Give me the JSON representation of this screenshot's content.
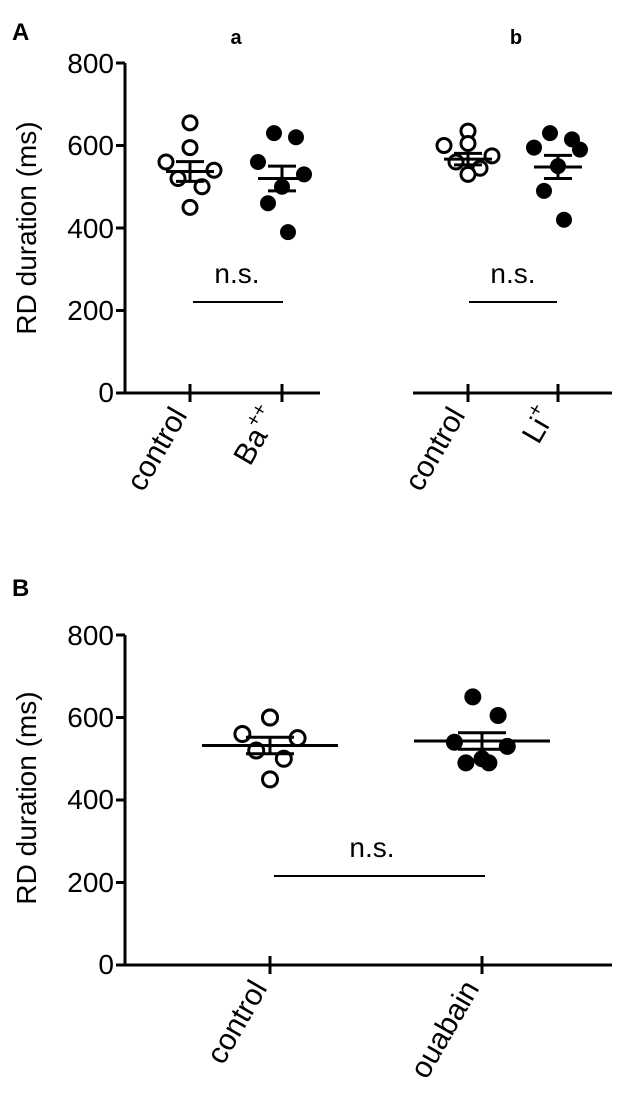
{
  "panels": [
    {
      "label": "A",
      "ylabel": "RD duration (ms)",
      "ylim": [
        0,
        800
      ],
      "yticks": [
        "0",
        "200",
        "400",
        "600",
        "800"
      ]
    },
    {
      "label": "B",
      "ylabel": "RD duration (ms)",
      "ylim": [
        0,
        800
      ],
      "yticks": [
        "0",
        "200",
        "400",
        "600",
        "800"
      ]
    }
  ],
  "chart_data": [
    {
      "type": "scatter",
      "panel": "A",
      "sublabel": "a",
      "categories": [
        "control",
        "Ba++"
      ],
      "category_display": [
        {
          "base": "control",
          "sup": ""
        },
        {
          "base": "Ba",
          "sup": "++"
        }
      ],
      "series": [
        {
          "category": "control",
          "marker": "open",
          "values": [
            655,
            595,
            560,
            540,
            520,
            500,
            450
          ],
          "mean": 537,
          "sem": 24
        },
        {
          "category": "Ba++",
          "marker": "filled",
          "values": [
            630,
            620,
            560,
            530,
            500,
            460,
            390
          ],
          "mean": 520,
          "sem": 30
        }
      ],
      "annotation": "n.s.",
      "ylim": [
        0,
        800
      ]
    },
    {
      "type": "scatter",
      "panel": "A",
      "sublabel": "b",
      "categories": [
        "control",
        "Li+"
      ],
      "category_display": [
        {
          "base": "control",
          "sup": ""
        },
        {
          "base": "Li",
          "sup": "+"
        }
      ],
      "series": [
        {
          "category": "control",
          "marker": "open",
          "values": [
            635,
            605,
            600,
            575,
            560,
            545,
            530
          ],
          "mean": 567,
          "sem": 14
        },
        {
          "category": "Li+",
          "marker": "filled",
          "values": [
            630,
            615,
            595,
            590,
            550,
            490,
            420
          ],
          "mean": 548,
          "sem": 28
        }
      ],
      "annotation": "n.s.",
      "ylim": [
        0,
        800
      ]
    },
    {
      "type": "scatter",
      "panel": "B",
      "categories": [
        "control",
        "ouabain"
      ],
      "category_display": [
        {
          "base": "control",
          "sup": ""
        },
        {
          "base": "ouabain",
          "sup": ""
        }
      ],
      "series": [
        {
          "category": "control",
          "marker": "open",
          "values": [
            600,
            600,
            560,
            550,
            520,
            500,
            450
          ],
          "mean": 532,
          "sem": 20
        },
        {
          "category": "ouabain",
          "marker": "filled",
          "values": [
            650,
            605,
            540,
            530,
            500,
            490,
            490
          ],
          "mean": 543,
          "sem": 20
        }
      ],
      "annotation": "n.s.",
      "ylim": [
        0,
        800
      ]
    }
  ]
}
